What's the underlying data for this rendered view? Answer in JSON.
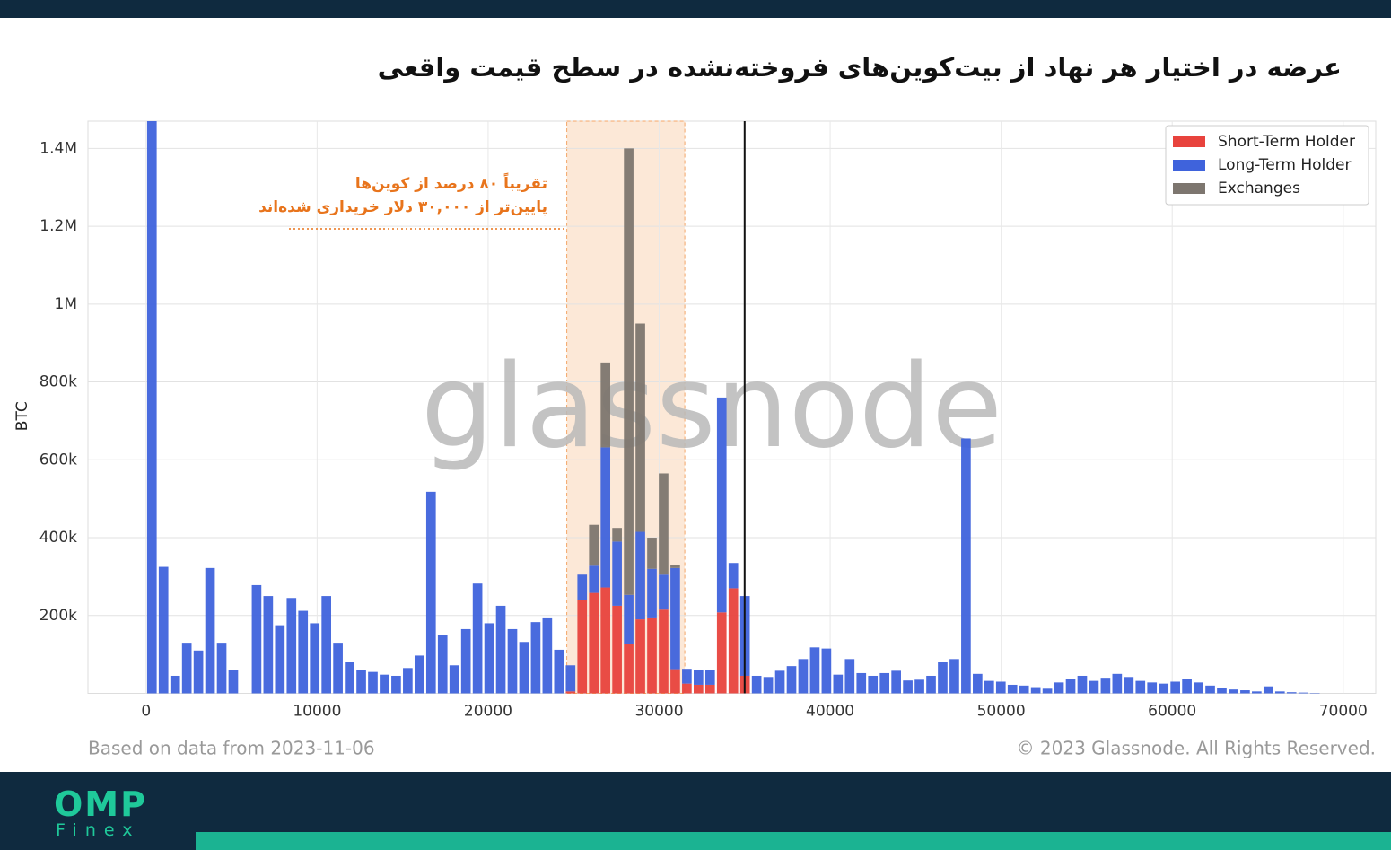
{
  "chart_data": {
    "type": "bar",
    "stacked": true,
    "title": "عرضه در اختیار هر نهاد از بیت‌کوین‌های فروخته‌نشده در سطح قیمت واقعی",
    "ylabel": "BTC",
    "annotations": [
      "تقریباً ۸۰ درصد از کوین‌ها",
      "پایین‌تر از ۳۰,۰۰۰ دلار خریداری شده‌اند"
    ],
    "highlight_range": [
      24600,
      31500
    ],
    "vline": 35000,
    "watermark": "glassnode",
    "source_note": "Based on data from 2023-11-06",
    "copyright": "© 2023 Glassnode. All Rights Reserved.",
    "xlim": [
      -3400,
      71900
    ],
    "ylim": [
      0,
      1470000
    ],
    "xticks": [
      0,
      10000,
      20000,
      30000,
      40000,
      50000,
      60000,
      70000
    ],
    "yticks": [
      {
        "value": 200000,
        "label": "200k"
      },
      {
        "value": 400000,
        "label": "400k"
      },
      {
        "value": 600000,
        "label": "600k"
      },
      {
        "value": 800000,
        "label": "800k"
      },
      {
        "value": 1000000,
        "label": "1M"
      },
      {
        "value": 1200000,
        "label": "1.2M"
      },
      {
        "value": 1400000,
        "label": "1.4M"
      }
    ],
    "grid": true,
    "legend": "upper right",
    "x": [
      340,
      1020,
      1700,
      2380,
      3060,
      3740,
      4420,
      5100,
      5780,
      6460,
      7140,
      7820,
      8500,
      9180,
      9860,
      10540,
      11220,
      11900,
      12580,
      13260,
      13940,
      14620,
      15300,
      15980,
      16660,
      17340,
      18020,
      18700,
      19380,
      20060,
      20740,
      21420,
      22100,
      22780,
      23460,
      24140,
      24820,
      25500,
      26180,
      26860,
      27540,
      28220,
      28900,
      29580,
      30260,
      30940,
      31620,
      32300,
      32980,
      33660,
      34340,
      35020,
      35700,
      36380,
      37060,
      37740,
      38420,
      39100,
      39780,
      40460,
      41140,
      41820,
      42500,
      43180,
      43860,
      44540,
      45220,
      45900,
      46580,
      47260,
      47940,
      48620,
      49300,
      49980,
      50660,
      51340,
      52020,
      52700,
      53380,
      54060,
      54740,
      55420,
      56100,
      56780,
      57460,
      58140,
      58820,
      59500,
      60180,
      60860,
      61540,
      62220,
      62900,
      63580,
      64260,
      64940,
      65620,
      66300,
      66980,
      67660,
      68340
    ],
    "series": [
      {
        "name": "Short-Term Holder",
        "color": "#e8433d",
        "values": [
          0,
          0,
          0,
          0,
          0,
          0,
          0,
          0,
          0,
          0,
          0,
          0,
          0,
          0,
          0,
          0,
          0,
          0,
          0,
          0,
          0,
          0,
          0,
          0,
          0,
          0,
          0,
          0,
          0,
          0,
          0,
          0,
          0,
          0,
          0,
          0,
          5000,
          240000,
          258000,
          272000,
          225000,
          128000,
          190000,
          195000,
          215000,
          62000,
          25000,
          22000,
          22000,
          208000,
          270000,
          45000,
          0,
          0,
          0,
          0,
          0,
          0,
          0,
          0,
          0,
          0,
          0,
          0,
          0,
          0,
          0,
          0,
          0,
          0,
          0,
          0,
          0,
          0,
          0,
          0,
          0,
          0,
          0,
          0,
          0,
          0,
          0,
          0,
          0,
          0,
          0,
          0,
          0,
          0,
          0,
          0,
          0,
          0,
          0,
          0,
          0,
          0,
          0,
          0,
          0
        ]
      },
      {
        "name": "Long-Term Holder",
        "color": "#3f63dc",
        "values": [
          1500000,
          325000,
          45000,
          130000,
          110000,
          322000,
          130000,
          60000,
          0,
          278000,
          250000,
          175000,
          245000,
          212000,
          180000,
          250000,
          130000,
          80000,
          60000,
          55000,
          48000,
          45000,
          65000,
          97000,
          518000,
          150000,
          72000,
          165000,
          282000,
          180000,
          225000,
          165000,
          132000,
          183000,
          195000,
          112000,
          67000,
          65000,
          70000,
          360000,
          165000,
          125000,
          225000,
          125000,
          90000,
          260000,
          38000,
          38000,
          38000,
          552000,
          65000,
          205000,
          45000,
          42000,
          58000,
          70000,
          88000,
          118000,
          115000,
          48000,
          88000,
          52000,
          45000,
          52000,
          58000,
          33000,
          35000,
          45000,
          80000,
          88000,
          655000,
          50000,
          32000,
          30000,
          22000,
          20000,
          16000,
          12000,
          28000,
          38000,
          45000,
          32000,
          40000,
          50000,
          42000,
          32000,
          28000,
          25000,
          30000,
          38000,
          28000,
          20000,
          15000,
          10000,
          8000,
          5000,
          18000,
          5000,
          3000,
          2000,
          1000
        ]
      },
      {
        "name": "Exchanges",
        "color": "#7d766f",
        "values": [
          0,
          0,
          0,
          0,
          0,
          0,
          0,
          0,
          0,
          0,
          0,
          0,
          0,
          0,
          0,
          0,
          0,
          0,
          0,
          0,
          0,
          0,
          0,
          0,
          0,
          0,
          0,
          0,
          0,
          0,
          0,
          0,
          0,
          0,
          0,
          0,
          0,
          0,
          105000,
          218000,
          35000,
          1147000,
          535000,
          80000,
          260000,
          8000,
          0,
          0,
          0,
          0,
          0,
          0,
          0,
          0,
          0,
          0,
          0,
          0,
          0,
          0,
          0,
          0,
          0,
          0,
          0,
          0,
          0,
          0,
          0,
          0,
          0,
          0,
          0,
          0,
          0,
          0,
          0,
          0,
          0,
          0,
          0,
          0,
          0,
          0,
          0,
          0,
          0,
          0,
          0,
          0,
          0,
          0,
          0,
          0,
          0,
          0,
          0,
          0,
          0,
          0,
          0
        ]
      }
    ]
  },
  "footer": {
    "brand": "OMP",
    "sub": "Finex"
  }
}
